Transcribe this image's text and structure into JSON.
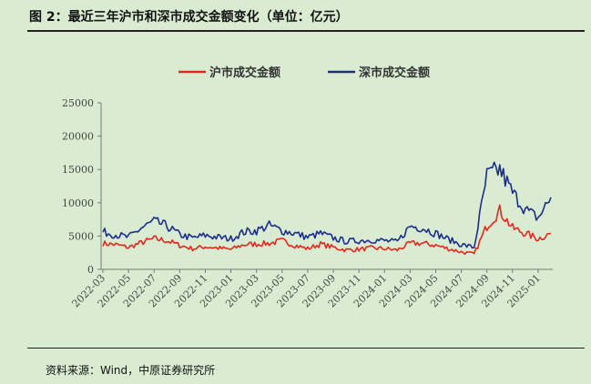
{
  "figure": {
    "title": "图 2：最近三年沪市和深市成交金额变化（单位：亿元）",
    "source": "资料来源：Wind，中原证券研究所"
  },
  "chart_data": {
    "type": "line",
    "title": "",
    "xlabel": "",
    "ylabel": "",
    "ylim": [
      0,
      25000
    ],
    "yticks": [
      "0",
      "5000",
      "10000",
      "15000",
      "20000",
      "25000"
    ],
    "xticks": [
      "2022-03",
      "2022-05",
      "2022-07",
      "2022-09",
      "2022-11",
      "2023-01",
      "2023-03",
      "2023-05",
      "2023-07",
      "2023-09",
      "2023-11",
      "2024-01",
      "2024-03",
      "2024-05",
      "2024-07",
      "2024-09",
      "2024-11",
      "2025-01"
    ],
    "grid": false,
    "legend": "top-center",
    "x": [
      "2022-03",
      "2022-04",
      "2022-05",
      "2022-06",
      "2022-07",
      "2022-08",
      "2022-09",
      "2022-10",
      "2022-11",
      "2022-12",
      "2023-01",
      "2023-02",
      "2023-03",
      "2023-04",
      "2023-05",
      "2023-06",
      "2023-07",
      "2023-08",
      "2023-09",
      "2023-10",
      "2023-11",
      "2023-12",
      "2024-01",
      "2024-02",
      "2024-03",
      "2024-04",
      "2024-05",
      "2024-06",
      "2024-07",
      "2024-08",
      "2024-09",
      "2024-10",
      "2024-11",
      "2024-12",
      "2025-01",
      "2025-02"
    ],
    "series": [
      {
        "name": "沪市成交金额",
        "color": "#e8251b",
        "values": [
          3900,
          3700,
          3300,
          4000,
          4600,
          4300,
          3600,
          3100,
          3400,
          3200,
          3000,
          3700,
          3800,
          3900,
          4300,
          3600,
          3100,
          3800,
          3300,
          2900,
          3000,
          3200,
          3100,
          2900,
          3900,
          3900,
          3600,
          3100,
          2600,
          2300,
          6500,
          8800,
          6200,
          5400,
          4600,
          5400
        ]
      },
      {
        "name": "深市成交金额",
        "color": "#1c2c8c",
        "values": [
          5600,
          5200,
          4800,
          6200,
          7200,
          6500,
          5200,
          4700,
          5100,
          4800,
          4600,
          5600,
          5800,
          6600,
          5800,
          5400,
          4800,
          5400,
          4700,
          4200,
          4300,
          4400,
          4300,
          4100,
          6500,
          6200,
          5400,
          4500,
          3700,
          3300,
          14000,
          15000,
          11500,
          9000,
          7700,
          10800
        ]
      }
    ]
  }
}
